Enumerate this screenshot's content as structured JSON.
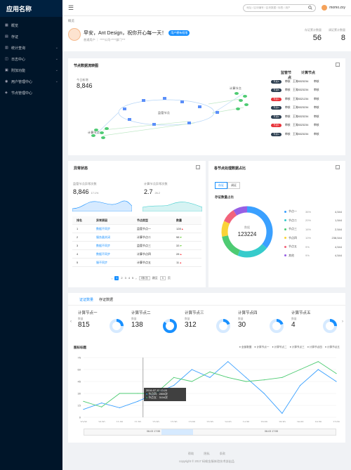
{
  "app": {
    "name": "应用名称"
  },
  "sidebar": {
    "items": [
      {
        "label": "概览",
        "icon": "dashboard-icon",
        "chevron": false
      },
      {
        "label": "存证",
        "icon": "file-icon",
        "chevron": false
      },
      {
        "label": "统计查询",
        "icon": "chart-icon",
        "chevron": true
      },
      {
        "label": "日志中心",
        "icon": "log-icon",
        "chevron": true
      },
      {
        "label": "附加功能",
        "icon": "plus-icon",
        "chevron": true
      },
      {
        "label": "用户管理中心",
        "icon": "user-icon",
        "chevron": true
      },
      {
        "label": "节点管理中心",
        "icon": "node-icon",
        "chevron": false
      }
    ]
  },
  "topbar": {
    "search_placeholder": "地址 / 区块编号 / 区块数据 / 标签 / 用户",
    "username": "momo.zxy"
  },
  "header": {
    "breadcrumb": "概览",
    "greeting": "早安，Ant Design，祝你开心每一天！",
    "tag": "用户拥有权限",
    "subtitle": "普通用户 ｜ ****公司-****部门***",
    "stats": [
      {
        "label": "存证累计数量",
        "value": "56"
      },
      {
        "label": "调证累计数量",
        "value": "8"
      }
    ]
  },
  "flow": {
    "title": "节点数据流转图",
    "new_label": "今日新增",
    "new_value": "8,846",
    "node_labels": [
      "监管节点",
      "计算节点",
      "计算节点"
    ],
    "table_headers": [
      "监管节点",
      "计算节点"
    ],
    "rows": [
      {
        "tag": "节点A",
        "color": "#2c3e50",
        "name": "审核",
        "owner": "王涛8323234",
        "state": "审核"
      },
      {
        "tag": "节点B",
        "color": "#2c3e50",
        "name": "审核",
        "owner": "王涛8323234",
        "state": "审核"
      },
      {
        "tag": "节点C",
        "color": "#e8333a",
        "name": "审核",
        "owner": "王涛8321234",
        "state": "审核"
      },
      {
        "tag": "节点D",
        "color": "#2c3e50",
        "name": "审核",
        "owner": "王涛8323234",
        "state": "审核"
      },
      {
        "tag": "节点E",
        "color": "#2c3e50",
        "name": "审核",
        "owner": "王涛8323234",
        "state": "审核"
      },
      {
        "tag": "节点F",
        "color": "#e8333a",
        "name": "审核",
        "owner": "王涛8323234",
        "state": "审核"
      },
      {
        "tag": "节点G",
        "color": "#2c3e50",
        "name": "审核",
        "owner": "王涛8323234",
        "state": "审核"
      }
    ]
  },
  "anomaly": {
    "title": "异常状态",
    "kpi1": {
      "label": "监管节点异常次数",
      "value": "8,846",
      "pct": "17.1%"
    },
    "kpi2": {
      "label": "计算节点异常次数",
      "value": "2.7",
      "pct": "26.2"
    },
    "headers": [
      "排名",
      "异常原因",
      "节点类型",
      "数量"
    ],
    "rows": [
      {
        "rank": "1",
        "reason": "数据不同步",
        "type": "监管节点一",
        "count": "128",
        "trend": "up"
      },
      {
        "rank": "2",
        "reason": "服务器关闭",
        "type": "计算节点二",
        "count": "98",
        "trend": "down"
      },
      {
        "rank": "3",
        "reason": "数据不同步",
        "type": "监管节点三",
        "count": "33",
        "trend": "down"
      },
      {
        "rank": "4",
        "reason": "数据不同步",
        "type": "计算节点四",
        "count": "28",
        "trend": "up"
      },
      {
        "rank": "5",
        "reason": "服不同步",
        "type": "计算节点五",
        "count": "11",
        "trend": "up"
      }
    ],
    "pager": {
      "pages": [
        "1",
        "2",
        "3",
        "4",
        "5"
      ],
      "size": "5条/页",
      "jump_label": "跳至",
      "jump_value": "5",
      "page_suffix": "页"
    }
  },
  "share": {
    "title": "各节点处理数据占比",
    "seg": [
      "存证",
      "调证"
    ],
    "subtitle": "存证数量占比",
    "center_label": "数据",
    "center_value": "123224",
    "legend": [
      {
        "name": "节点一",
        "pct": "36%",
        "value": "4,544",
        "color": "#3aa0ff"
      },
      {
        "name": "节点二",
        "pct": "20%",
        "value": "1,544",
        "color": "#36cbcb"
      },
      {
        "name": "节点三",
        "pct": "16%",
        "value": "2,544",
        "color": "#4ecb73"
      },
      {
        "name": "节点四",
        "pct": "10%",
        "value": "238,544",
        "color": "#fad337"
      },
      {
        "name": "节点五",
        "pct": "9%",
        "value": "4,544",
        "color": "#f2637b"
      },
      {
        "name": "其他",
        "pct": "9%",
        "value": "4,544",
        "color": "#975fe4"
      }
    ]
  },
  "bottom": {
    "tabs": [
      "证证数量",
      "存证数据"
    ],
    "minis": [
      {
        "title": "计算节点一",
        "label": "数量",
        "value": "815",
        "ratio": 0.25
      },
      {
        "title": "计算节点二",
        "label": "数量",
        "value": "138",
        "ratio": 0.85
      },
      {
        "title": "计算节点三",
        "label": "数量",
        "value": "312",
        "ratio": 0.2
      },
      {
        "title": "计算节点四",
        "label": "数量",
        "value": "30",
        "ratio": 0.2
      },
      {
        "title": "计算节点五",
        "label": "数量",
        "value": "4",
        "ratio": 0.25
      }
    ],
    "chart_title": "图标标题",
    "legend": [
      "全部数据",
      "计算节点一",
      "计算节点二",
      "计算节点三",
      "计算节点四",
      "计算节点五"
    ],
    "tooltip": {
      "time": "2016-07-12  13:20",
      "l1": "节点四：2800次",
      "l2": "节点五：3104次"
    },
    "range_start": "08-03 17:55",
    "range_end": "08-03 17:55"
  },
  "chart_data": {
    "type": "line",
    "x": [
      "10:00",
      "10:30",
      "11:00",
      "11:30",
      "12:00",
      "12:30",
      "13:00",
      "13:30",
      "14:00",
      "14:30",
      "15:00",
      "15:30",
      "16:00",
      "16:30",
      "17:00"
    ],
    "yticks": [
      "0",
      "15",
      "30",
      "45",
      "60",
      "75"
    ],
    "ylim": [
      0,
      75
    ],
    "series": [
      {
        "name": "计算节点一",
        "color": "#3aa0ff",
        "values": [
          10,
          18,
          12,
          20,
          30,
          40,
          60,
          50,
          70,
          50,
          30,
          5,
          40,
          60,
          45
        ]
      },
      {
        "name": "计算节点二",
        "color": "#4ecb73",
        "values": [
          20,
          13,
          30,
          30,
          30,
          50,
          45,
          57,
          50,
          45,
          47,
          50,
          60,
          70,
          55
        ]
      }
    ]
  },
  "footer": {
    "links": [
      "帮助",
      "隐私",
      "条款"
    ],
    "copyright": "copyright © 2017 蚂蚁金服体验技术部出品"
  }
}
